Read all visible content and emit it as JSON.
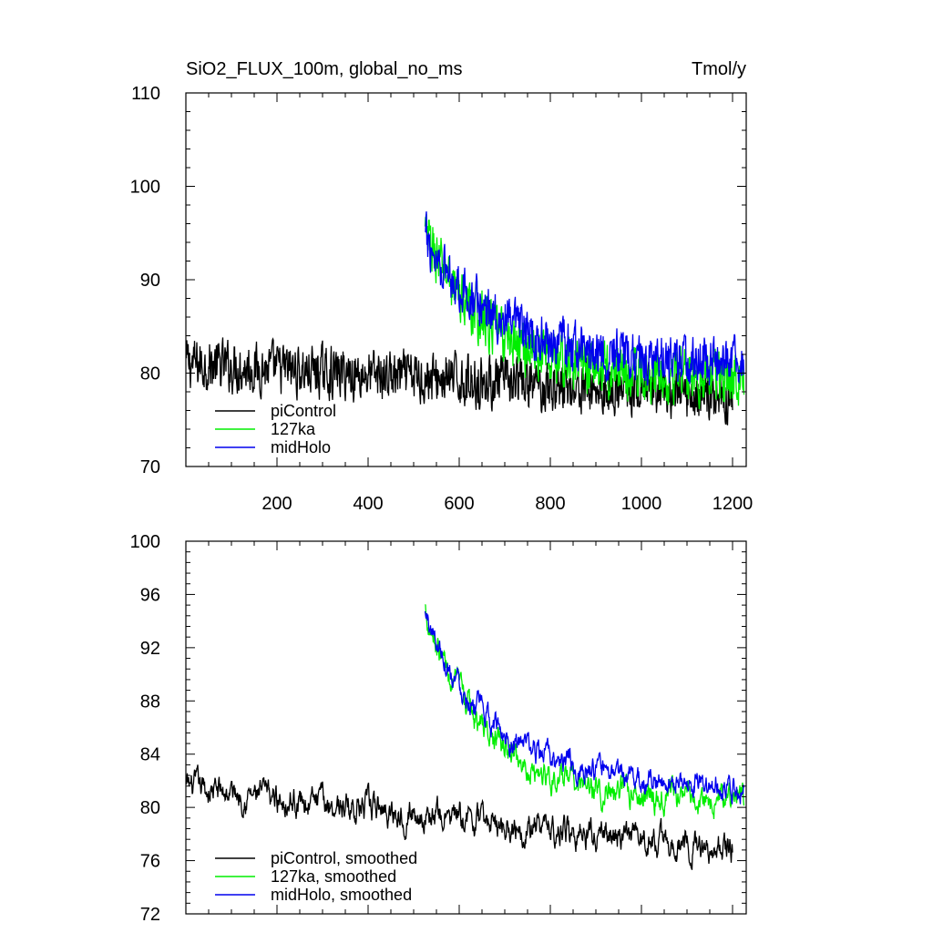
{
  "header": {
    "title": "SiO2_FLUX_100m, global_no_ms",
    "units": "Tmol/y"
  },
  "colors": {
    "piControl": "#000000",
    "127ka": "#00ee00",
    "midHolo": "#0000ee"
  },
  "chart_data": [
    {
      "type": "line",
      "title": "SiO2_FLUX_100m, global_no_ms",
      "units": "Tmol/y",
      "xlim": [
        0,
        1230
      ],
      "ylim": [
        70,
        110
      ],
      "xticks": [
        200,
        400,
        600,
        800,
        1000,
        1200
      ],
      "xtick_labels": [
        "200",
        "400",
        "600",
        "800",
        "1000",
        "1200"
      ],
      "yticks": [
        70,
        80,
        90,
        100,
        110
      ],
      "ytick_labels": [
        "70",
        "80",
        "90",
        "100",
        "110"
      ],
      "legend": {
        "placement": "bottom-left",
        "entries": [
          "piControl",
          "127ka",
          "midHolo"
        ]
      },
      "series": [
        {
          "name": "piControl",
          "color": "#000000",
          "start": 1,
          "end": 1200,
          "mean_start": 81.0,
          "mean_end": 77.5,
          "noise": 2.4
        },
        {
          "name": "127ka",
          "color": "#00ee00",
          "start": 525,
          "end": 1225,
          "peak": 95.0,
          "asymptote": 79.5,
          "tau": 140,
          "noise": 2.6
        },
        {
          "name": "midHolo",
          "color": "#0000ee",
          "start": 525,
          "end": 1225,
          "peak": 94.5,
          "asymptote": 81.0,
          "tau": 160,
          "noise": 2.3
        }
      ]
    },
    {
      "type": "line",
      "xlim": [
        0,
        1230
      ],
      "ylim": [
        72,
        100
      ],
      "xticks": [
        200,
        400,
        600,
        800,
        1000,
        1200
      ],
      "yticks": [
        72,
        76,
        80,
        84,
        88,
        92,
        96,
        100
      ],
      "ytick_labels": [
        "72",
        "76",
        "80",
        "84",
        "88",
        "92",
        "96",
        "100"
      ],
      "legend": {
        "placement": "bottom-left",
        "entries": [
          "piControl, smoothed",
          "127ka, smoothed",
          "midHolo, smoothed"
        ]
      },
      "series": [
        {
          "name": "piControl, smoothed",
          "color": "#000000",
          "start": 1,
          "end": 1200,
          "mean_start": 81.5,
          "mean_end": 76.8,
          "noise": 0.9
        },
        {
          "name": "127ka, smoothed",
          "color": "#00ee00",
          "start": 525,
          "end": 1225,
          "peak": 95.0,
          "asymptote": 80.6,
          "tau": 130,
          "noise": 0.9
        },
        {
          "name": "midHolo, smoothed",
          "color": "#0000ee",
          "start": 525,
          "end": 1225,
          "peak": 94.5,
          "asymptote": 81.6,
          "tau": 150,
          "noise": 0.8
        }
      ]
    }
  ]
}
